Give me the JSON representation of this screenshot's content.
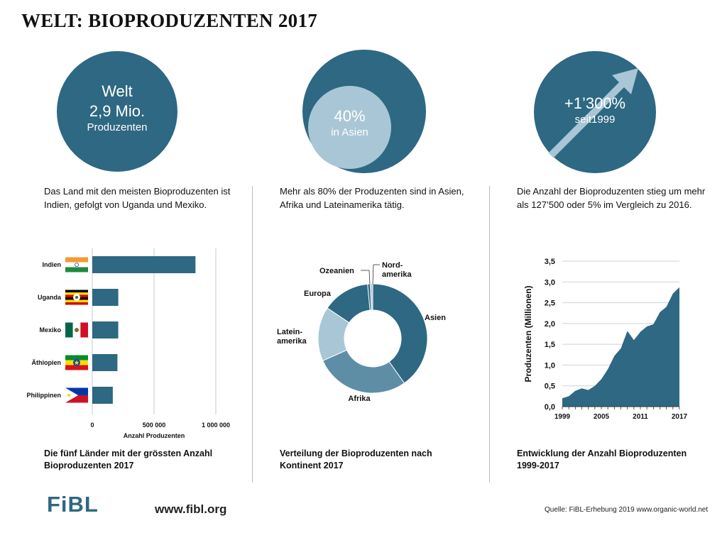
{
  "title": "WELT: BIOPRODUZENTEN 2017",
  "circles": {
    "world": {
      "line1": "Welt",
      "line2": "2,9 Mio.",
      "line3": "Produzenten"
    },
    "asia": {
      "pct": "40%",
      "label": "in Asien"
    },
    "growth": {
      "pct": "+1’300%",
      "label": "seit1999"
    }
  },
  "descriptions": {
    "left": "Das Land mit den meisten Bioproduzenten ist Indien, gefolgt von Uganda und Mexiko.",
    "middle": "Mehr als 80% der Produzenten sind in Asien, Afrika und Lateinamerika tätig.",
    "right": "Die Anzahl der Bioproduzenten stieg um mehr als 127’500 oder 5% im Vergleich zu 2016."
  },
  "captions": {
    "left": "Die fünf Länder mit der grössten Anzahl Bioproduzenten 2017",
    "middle": "Verteilung der Bioproduzenten nach Kontinent 2017",
    "right": "Entwicklung der Anzahl Bioproduzenten 1999-2017"
  },
  "footer": {
    "logo": "FiBL",
    "url": "www.fibl.org",
    "source": "Quelle: FiBL-Erhebung 2019 www.organic-world.net"
  },
  "colors": {
    "primary": "#2e6882",
    "light": "#a9c6d6",
    "mid": "#5e8ea6"
  },
  "chart_data": [
    {
      "type": "bar",
      "orientation": "horizontal",
      "categories": [
        "Indien",
        "Uganda",
        "Mexiko",
        "Äthiopien",
        "Philippinen"
      ],
      "values": [
        835200,
        210352,
        210118,
        203602,
        166001
      ],
      "xlabel": "Anzahl Produzenten",
      "xlim": [
        0,
        1000000
      ],
      "xticks": [
        "0",
        "500 000",
        "1 000 000"
      ],
      "flags": [
        "india-flag-icon",
        "uganda-flag-icon",
        "mexico-flag-icon",
        "ethiopia-flag-icon",
        "philippines-flag-icon"
      ]
    },
    {
      "type": "pie",
      "donut": true,
      "labels": [
        "Asien",
        "Afrika",
        "Lateinamerika",
        "Europa",
        "Ozeanien",
        "Nordamerika"
      ],
      "display_labels": [
        [
          "Asien"
        ],
        [
          "Afrika"
        ],
        [
          "Latein-",
          "amerika"
        ],
        [
          "Europa"
        ],
        [
          "Ozeanien"
        ],
        [
          "Nord-",
          "amerika"
        ]
      ],
      "values": [
        40,
        28,
        16,
        14,
        0.8,
        0.7
      ],
      "colors": [
        "#2e6882",
        "#5e8ea6",
        "#a9c6d6",
        "#2e6882",
        "#2e6882",
        "#a9c6d6"
      ]
    },
    {
      "type": "area",
      "x": [
        1999,
        2000,
        2001,
        2002,
        2003,
        2004,
        2005,
        2006,
        2007,
        2008,
        2009,
        2010,
        2011,
        2012,
        2013,
        2014,
        2015,
        2016,
        2017
      ],
      "values": [
        0.2,
        0.25,
        0.38,
        0.44,
        0.4,
        0.5,
        0.66,
        0.9,
        1.22,
        1.4,
        1.82,
        1.6,
        1.8,
        1.93,
        1.98,
        2.27,
        2.4,
        2.72,
        2.87
      ],
      "ylabel": "Produzenten (Millionen)",
      "ylim": [
        0,
        3.5
      ],
      "yticks": [
        "0,0",
        "0,5",
        "1,0",
        "1,5",
        "2,0",
        "2,5",
        "3,0",
        "3,5"
      ],
      "xticks": [
        "1999",
        "2005",
        "2011",
        "2017"
      ]
    }
  ]
}
